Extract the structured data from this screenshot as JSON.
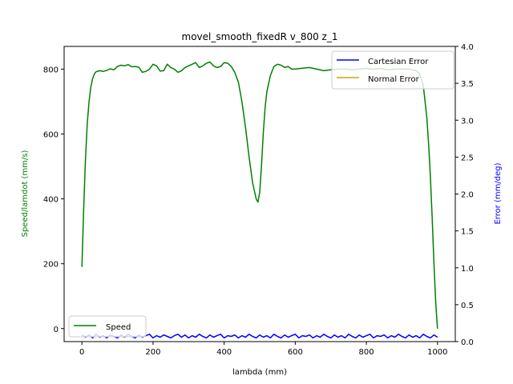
{
  "chart_data": {
    "type": "line",
    "title": "movel_smooth_fixedR v_800 z_1",
    "xlabel": "lambda (mm)",
    "ylabel": "Speed/lamdot (mm/s)",
    "y2label": "Error (mm/deg)",
    "xlim": [
      -50,
      1050
    ],
    "ylim": [
      -40,
      870
    ],
    "y2lim": [
      0,
      4.0
    ],
    "xticks": [
      0,
      200,
      400,
      600,
      800,
      1000
    ],
    "yticks": [
      0,
      200,
      400,
      600,
      800
    ],
    "y2ticks": [
      "0.0",
      "0.5",
      "1.0",
      "1.5",
      "2.0",
      "2.5",
      "3.0",
      "3.5",
      "4.0"
    ],
    "grid": false,
    "series": [
      {
        "name": "Speed",
        "axis": "left",
        "color": "#008000",
        "x": [
          0,
          5,
          10,
          15,
          20,
          25,
          30,
          35,
          40,
          50,
          60,
          70,
          80,
          90,
          100,
          110,
          120,
          130,
          140,
          150,
          160,
          170,
          180,
          190,
          200,
          210,
          220,
          230,
          240,
          250,
          260,
          270,
          280,
          290,
          300,
          310,
          320,
          330,
          340,
          350,
          360,
          370,
          380,
          390,
          400,
          410,
          420,
          430,
          440,
          450,
          460,
          470,
          480,
          490,
          495,
          500,
          505,
          510,
          515,
          520,
          530,
          540,
          550,
          560,
          570,
          580,
          590,
          600,
          620,
          640,
          660,
          680,
          700,
          720,
          740,
          760,
          780,
          800,
          820,
          840,
          860,
          880,
          900,
          920,
          940,
          950,
          960,
          970,
          975,
          980,
          985,
          990,
          995,
          1000
        ],
        "values": [
          190,
          370,
          520,
          630,
          700,
          745,
          770,
          785,
          792,
          795,
          793,
          796,
          801,
          798,
          808,
          812,
          810,
          814,
          807,
          808,
          806,
          790,
          793,
          800,
          815,
          810,
          794,
          795,
          815,
          805,
          800,
          790,
          795,
          805,
          810,
          815,
          820,
          805,
          810,
          818,
          822,
          810,
          805,
          808,
          820,
          818,
          808,
          790,
          760,
          700,
          620,
          530,
          450,
          400,
          390,
          420,
          500,
          600,
          680,
          730,
          780,
          808,
          815,
          812,
          805,
          808,
          800,
          800,
          803,
          805,
          800,
          795,
          798,
          800,
          800,
          798,
          800,
          802,
          800,
          802,
          798,
          800,
          800,
          800,
          795,
          785,
          750,
          650,
          570,
          470,
          340,
          200,
          80,
          0
        ]
      },
      {
        "name": "Cartesian Error",
        "axis": "right",
        "color": "#0000ff",
        "x": [
          0,
          10,
          20,
          30,
          40,
          50,
          60,
          70,
          80,
          90,
          100,
          110,
          120,
          130,
          140,
          150,
          160,
          170,
          180,
          190,
          200,
          210,
          220,
          230,
          240,
          250,
          260,
          270,
          280,
          290,
          300,
          310,
          320,
          330,
          340,
          350,
          360,
          370,
          380,
          390,
          400,
          410,
          420,
          430,
          440,
          450,
          460,
          470,
          480,
          490,
          500,
          510,
          520,
          530,
          540,
          550,
          560,
          570,
          580,
          590,
          600,
          610,
          620,
          630,
          640,
          650,
          660,
          670,
          680,
          690,
          700,
          710,
          720,
          730,
          740,
          750,
          760,
          770,
          780,
          790,
          800,
          810,
          820,
          830,
          840,
          850,
          860,
          870,
          880,
          890,
          900,
          910,
          920,
          930,
          940,
          950,
          960,
          970,
          980,
          990,
          1000
        ],
        "values": [
          0.09,
          0.06,
          0.09,
          0.05,
          0.1,
          0.06,
          0.08,
          0.05,
          0.09,
          0.07,
          0.05,
          0.09,
          0.06,
          0.1,
          0.07,
          0.05,
          0.09,
          0.06,
          0.08,
          0.1,
          0.05,
          0.08,
          0.06,
          0.09,
          0.07,
          0.05,
          0.08,
          0.1,
          0.06,
          0.09,
          0.05,
          0.08,
          0.06,
          0.1,
          0.07,
          0.05,
          0.09,
          0.06,
          0.08,
          0.1,
          0.05,
          0.08,
          0.07,
          0.09,
          0.05,
          0.08,
          0.06,
          0.1,
          0.07,
          0.05,
          0.09,
          0.06,
          0.08,
          0.05,
          0.1,
          0.07,
          0.05,
          0.09,
          0.06,
          0.08,
          0.1,
          0.05,
          0.08,
          0.07,
          0.09,
          0.05,
          0.08,
          0.06,
          0.1,
          0.07,
          0.05,
          0.09,
          0.06,
          0.08,
          0.05,
          0.1,
          0.07,
          0.05,
          0.09,
          0.06,
          0.08,
          0.1,
          0.05,
          0.08,
          0.07,
          0.09,
          0.05,
          0.08,
          0.06,
          0.1,
          0.07,
          0.05,
          0.09,
          0.06,
          0.08,
          0.05,
          0.1,
          0.07,
          0.05,
          0.09,
          0.06
        ]
      },
      {
        "name": "Normal Error",
        "axis": "right",
        "color": "#ccaa00",
        "x": [],
        "values": []
      }
    ],
    "legend_left": {
      "placement": "lower-left",
      "entries": [
        "Speed"
      ]
    },
    "legend_right": {
      "placement": "upper-right",
      "entries": [
        "Cartesian Error",
        "Normal Error"
      ]
    }
  }
}
